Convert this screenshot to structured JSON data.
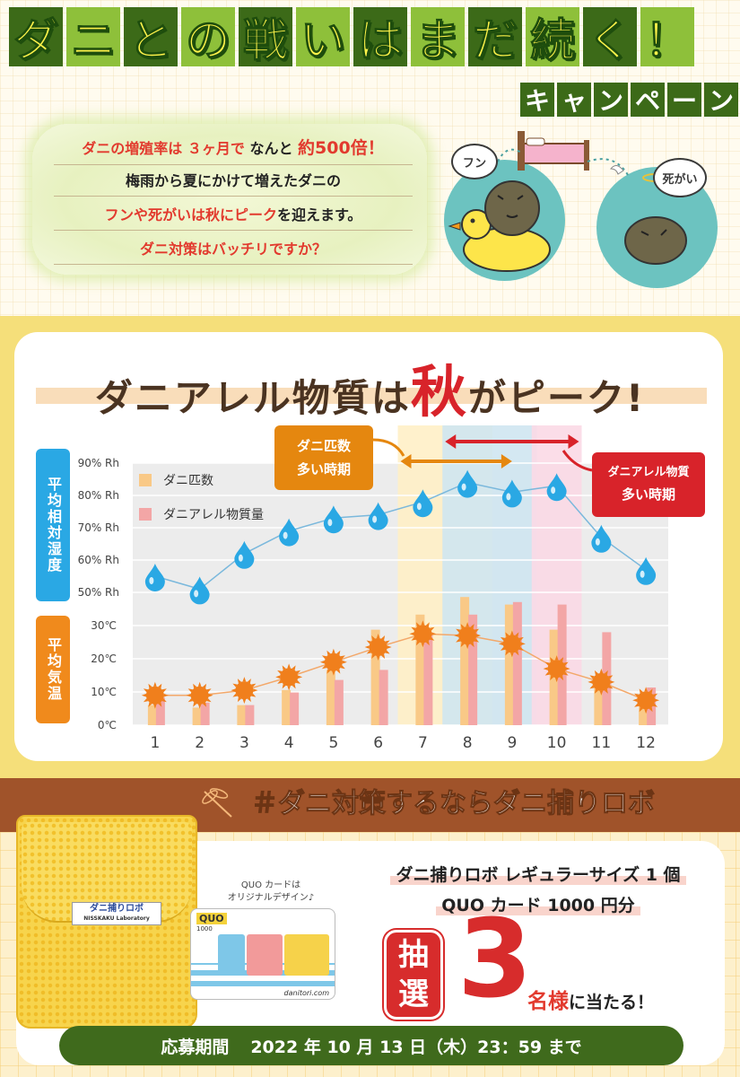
{
  "header": {
    "title_chars": [
      "ダ",
      "ニ",
      "と",
      "の",
      "戦",
      "い",
      "は",
      "ま",
      "だ",
      "続",
      "く",
      "！"
    ],
    "subtitle_chars": [
      "キ",
      "ャ",
      "ン",
      "ペ",
      "ー",
      "ン"
    ],
    "intro": {
      "line1_a": "ダニの増殖率は",
      "line1_b": "３ヶ月で",
      "line1_c": "なんと",
      "line1_d": "約500倍！",
      "line2": "梅雨から夏にかけて増えたダニの",
      "line3_a": "フンや死がいは秋にピーク",
      "line3_b": "を迎えます。",
      "line4": "ダニ対策はバッチリですか？"
    },
    "illustration": {
      "bubble_left": "フン",
      "bubble_right": "死がい"
    }
  },
  "chart_section": {
    "title_a": "ダニアレル物質は",
    "title_b": "秋",
    "title_c": "がピーク!",
    "label_humidity": "平均相対湿度",
    "label_temp": "平均気温",
    "callout_mites": {
      "line1": "ダニ匹数",
      "line2": "多い時期"
    },
    "callout_allergen": {
      "line1": "ダニアレル物質",
      "line2": "多い時期"
    }
  },
  "chart_data": {
    "type": "bar",
    "categories": [
      "1",
      "2",
      "3",
      "4",
      "5",
      "6",
      "7",
      "8",
      "9",
      "10",
      "11",
      "12"
    ],
    "series": [
      {
        "name": "ダニ匹数",
        "type": "bar",
        "color": "#f9c987",
        "values": [
          8,
          7,
          8,
          14,
          22,
          38,
          44,
          51,
          48,
          38,
          19,
          11
        ]
      },
      {
        "name": "ダニアレル物質量",
        "type": "bar",
        "color": "#f3a6a6",
        "values": [
          11,
          9,
          8,
          13,
          18,
          22,
          37,
          44,
          49,
          48,
          37,
          15
        ]
      }
    ],
    "humidity_rh": [
      55,
      51,
      62,
      69,
      73,
      74,
      78,
      84,
      81,
      83,
      67,
      57
    ],
    "temperature_c": [
      9,
      9,
      10.5,
      14.5,
      19,
      23.5,
      27.5,
      27,
      24.5,
      17,
      13,
      7.5
    ],
    "y_ticks_humidity": [
      "90% Rh",
      "80% Rh",
      "70% Rh",
      "60% Rh",
      "50% Rh"
    ],
    "y_ticks_temp": [
      "30℃",
      "20℃",
      "10℃",
      "0℃"
    ],
    "highlight_mites_months": [
      7,
      8
    ],
    "highlight_humidity_months": [
      8,
      9
    ],
    "highlight_allergen_months": [
      10
    ],
    "colors": {
      "mites": "#f9c987",
      "allergen": "#f3a6a6",
      "drop": "#2aa8e4",
      "sun": "#f07f1c",
      "band_yellow": "#fff0c6",
      "band_blue": "#cfe6f1",
      "band_pink": "#fbd9e5"
    }
  },
  "campaign": {
    "hashtag": "＃ダニ対策するならダニ捕りロボ",
    "product_tag_line1": "ダニ捕りロボ",
    "product_tag_line2": "NISSKAKU Laboratory",
    "quo_note_line1": "QUO カードは",
    "quo_note_line2": "オリジナルデザイン♪",
    "quo_logo": "QUO",
    "quo_value": "1000",
    "quo_url": "danitori.com",
    "prize_line1": "ダニ捕りロボ レギュラーサイズ 1 個",
    "prize_line2": "QUO カード 1000 円分",
    "lottery_1": "抽",
    "lottery_2": "選",
    "winner_count": "3",
    "winner_unit": "名様",
    "winner_suffix": "に当たる！",
    "period_label": "応募期間",
    "period_value": "2022 年 10 月 13 日（木）23：59 まで"
  }
}
